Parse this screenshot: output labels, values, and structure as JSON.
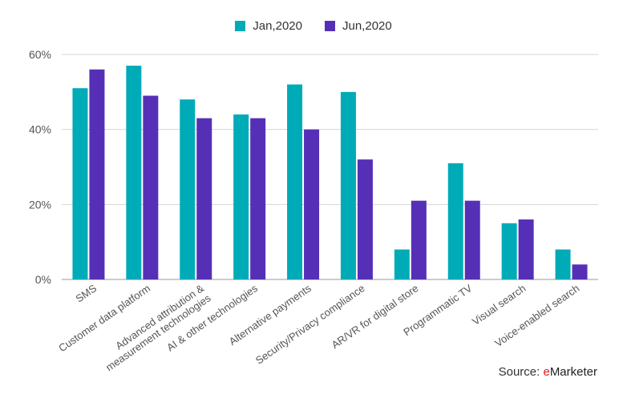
{
  "legend": {
    "series_1": "Jan,2020",
    "series_2": "Jun,2020"
  },
  "source": {
    "prefix": "Source: ",
    "brand_e": "e",
    "brand_rest": "Marketer"
  },
  "colors": {
    "series_1": "#00abb8",
    "series_2": "#5530b6",
    "grid": "#d4d4d4",
    "axis_text": "#555555"
  },
  "chart_data": {
    "type": "bar",
    "categories": [
      "SMS",
      "Customer data platform",
      [
        "Advanced attribution &",
        "measurement technologies"
      ],
      "AI & other technologies",
      "Alternative payments",
      "Security/Privacy compliance",
      "AR/VR for digital store",
      "Programmatic TV",
      "Visual search",
      "Voice-enabled search"
    ],
    "series": [
      {
        "name": "Jan,2020",
        "values": [
          51,
          57,
          48,
          44,
          52,
          50,
          8,
          31,
          15,
          8
        ]
      },
      {
        "name": "Jun,2020",
        "values": [
          56,
          49,
          43,
          43,
          40,
          32,
          21,
          21,
          16,
          4
        ]
      }
    ],
    "ylim": [
      0,
      60
    ],
    "yticks": [
      0,
      20,
      40,
      60
    ],
    "ytick_labels": [
      "0%",
      "20%",
      "40%",
      "60%"
    ],
    "grid": true,
    "legend_position": "top-center"
  }
}
